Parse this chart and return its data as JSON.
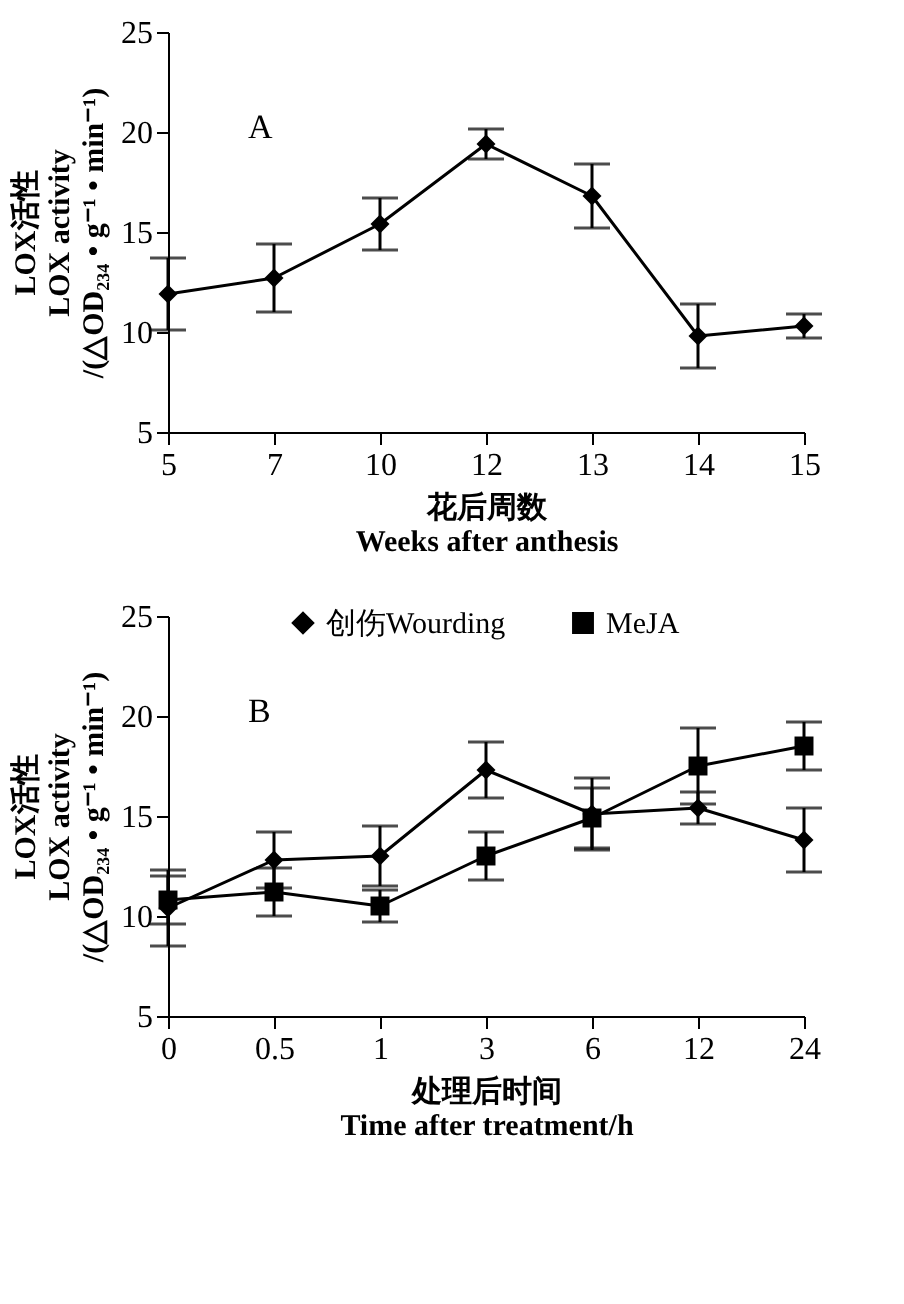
{
  "chart_data": [
    {
      "type": "line",
      "annotations": [
        "A"
      ],
      "xlabel": "花后周数\nWeeks after anthesis",
      "ylabel": "LOX活性\nLOX activity\n/(△OD₂₃₄ • g⁻¹ • min⁻¹)",
      "categories": [
        "5",
        "7",
        "10",
        "12",
        "13",
        "14",
        "15"
      ],
      "series": [
        {
          "color": "#000000",
          "marker": "diamond",
          "values": [
            11.9,
            12.7,
            15.4,
            19.4,
            16.8,
            9.8,
            10.3
          ],
          "errors": [
            1.8,
            1.7,
            1.3,
            0.75,
            1.6,
            1.6,
            0.6
          ]
        }
      ],
      "ylim": [
        5,
        25
      ],
      "yticks": [
        5,
        10,
        15,
        20,
        25
      ],
      "grid": false,
      "legend": false,
      "line_style": "solid"
    },
    {
      "type": "line",
      "annotations": [
        "B"
      ],
      "xlabel": "处理后时间\nTime after treatment/h",
      "ylabel": "LOX活性\nLOX activity\n/(△OD₂₃₄ • g⁻¹ • min⁻¹)",
      "categories": [
        "0",
        "0.5",
        "1",
        "3",
        "6",
        "12",
        "24"
      ],
      "series": [
        {
          "name": "创伤Wourding",
          "color": "#000000",
          "marker": "diamond",
          "values": [
            10.4,
            12.8,
            13.0,
            17.3,
            15.1,
            15.4,
            13.8
          ],
          "errors": [
            1.9,
            1.4,
            1.5,
            1.4,
            1.8,
            0.8,
            1.6
          ]
        },
        {
          "name": "MeJA",
          "color": "#000000",
          "marker": "square",
          "values": [
            10.8,
            11.2,
            10.5,
            13.0,
            14.9,
            17.5,
            18.5
          ],
          "errors": [
            1.2,
            1.2,
            0.8,
            1.2,
            1.5,
            1.9,
            1.2
          ]
        }
      ],
      "ylim": [
        5,
        25
      ],
      "yticks": [
        5,
        10,
        15,
        20,
        25
      ],
      "grid": false,
      "legend": "top",
      "line_style": "solid"
    }
  ]
}
